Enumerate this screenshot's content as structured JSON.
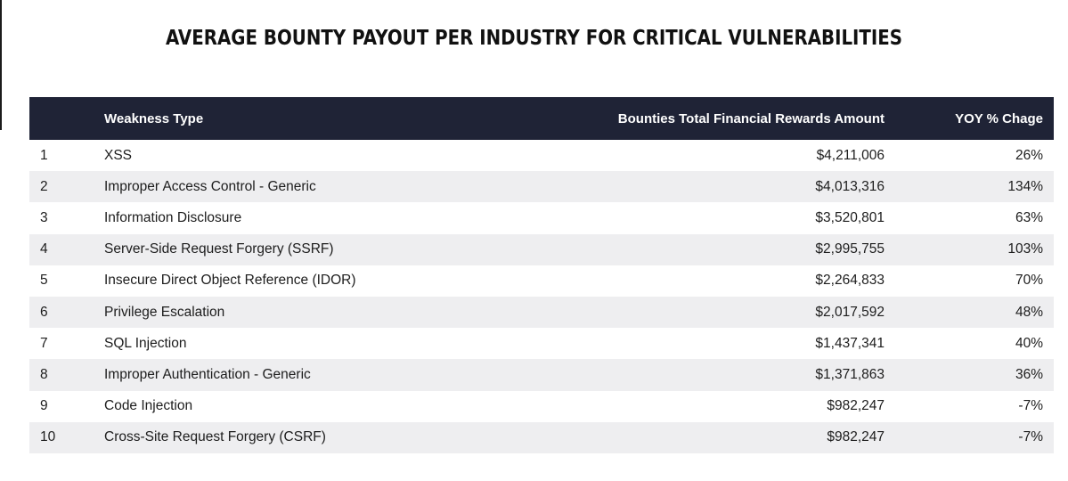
{
  "title": "AVERAGE BOUNTY PAYOUT PER INDUSTRY FOR CRITICAL VULNERABILITIES",
  "colors": {
    "header_background": "#1f2336",
    "header_text": "#ffffff",
    "stripe_row": "#eeeef0"
  },
  "chart_data": {
    "type": "table",
    "title": "AVERAGE BOUNTY PAYOUT PER INDUSTRY FOR CRITICAL VULNERABILITIES",
    "columns": [
      "",
      "Weakness Type",
      "Bounties Total Financial Rewards Amount",
      "YOY % Chage"
    ],
    "rows": [
      {
        "rank": "1",
        "weakness": "XSS",
        "amount": "$4,211,006",
        "yoy": "26%"
      },
      {
        "rank": "2",
        "weakness": "Improper Access Control - Generic",
        "amount": "$4,013,316",
        "yoy": "134%"
      },
      {
        "rank": "3",
        "weakness": "Information Disclosure",
        "amount": "$3,520,801",
        "yoy": "63%"
      },
      {
        "rank": "4",
        "weakness": "Server-Side Request Forgery (SSRF)",
        "amount": "$2,995,755",
        "yoy": "103%"
      },
      {
        "rank": "5",
        "weakness": "Insecure Direct Object Reference (IDOR)",
        "amount": "$2,264,833",
        "yoy": "70%"
      },
      {
        "rank": "6",
        "weakness": "Privilege Escalation",
        "amount": "$2,017,592",
        "yoy": "48%"
      },
      {
        "rank": "7",
        "weakness": "SQL Injection",
        "amount": "$1,437,341",
        "yoy": "40%"
      },
      {
        "rank": "8",
        "weakness": "Improper Authentication - Generic",
        "amount": "$1,371,863",
        "yoy": "36%"
      },
      {
        "rank": "9",
        "weakness": "Code Injection",
        "amount": "$982,247",
        "yoy": "-7%"
      },
      {
        "rank": "10",
        "weakness": "Cross-Site Request Forgery (CSRF)",
        "amount": "$982,247",
        "yoy": "-7%"
      }
    ]
  }
}
